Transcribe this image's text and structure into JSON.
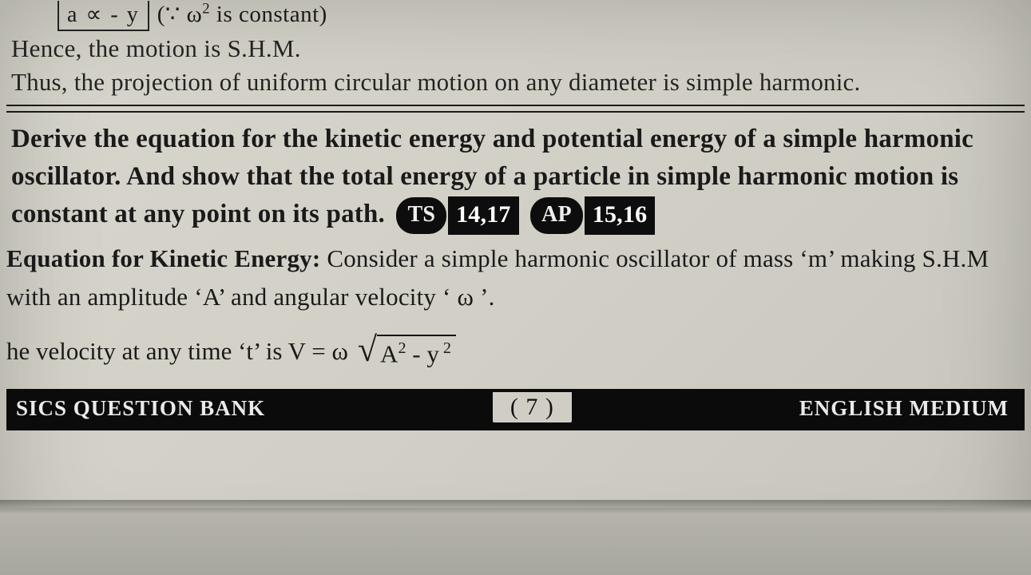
{
  "top": {
    "box_text": "a ∝ - y",
    "omega_note_prefix": "(∵ ω",
    "omega_note_exp": "2",
    "omega_note_suffix": " is constant)"
  },
  "para1": "Hence, the motion is S.H.M.",
  "para2": "Thus, the projection of uniform circular motion on any diameter is simple harmonic.",
  "question": {
    "text": "Derive the equation for the kinetic energy and potential energy of a simple harmonic oscillator. And show that the total energy of a particle in simple harmonic motion is constant at any point on its path.",
    "badges": {
      "ts_label": "TS",
      "ts_years": "14,17",
      "ap_label": "AP",
      "ap_years": "15,16"
    }
  },
  "kinetic": {
    "heading": "Equation for Kinetic Energy:",
    "line1": " Consider a simple harmonic oscillator of mass ‘m’ making S.H.M with an amplitude ‘A’ and angular velocity ‘ ω ’.",
    "velocity_prefix": "he velocity at any time ‘t’ is  V = ω",
    "sqrt_inner_a": "A",
    "sqrt_inner_exp1": "2",
    "sqrt_inner_mid": " - y",
    "sqrt_inner_exp2": " 2"
  },
  "footer": {
    "left": "SICS QUESTION BANK",
    "center": "( 7 )",
    "right": "ENGLISH MEDIUM"
  },
  "colors": {
    "page_bg": "#d2d0c6",
    "text": "#1a1a1a",
    "bar_bg": "#0b0b0b",
    "bar_text": "#eaeaea",
    "badge_bg": "#0d0d0d"
  }
}
